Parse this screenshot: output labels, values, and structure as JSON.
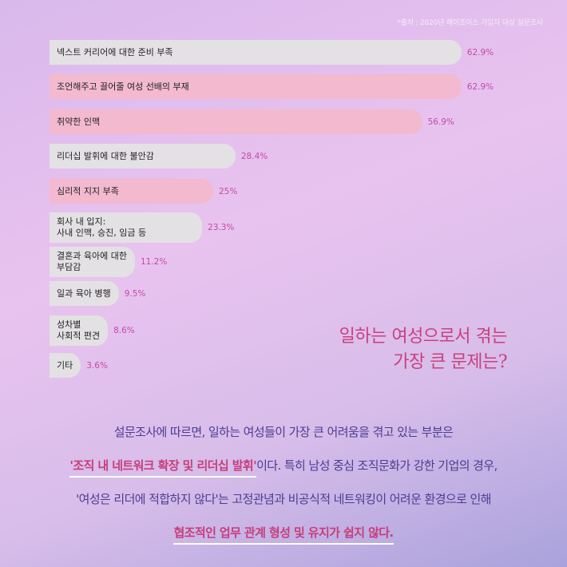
{
  "source_note": "*출처 : 2020년 헤이조이스 가입자 대상 설문조사",
  "chart_data": {
    "type": "bar",
    "orientation": "horizontal",
    "categories": [
      "넥스트 커리어에 대한 준비 부족",
      "조언해주고 끌어줄 여성 선배의 부재",
      "취약한 인맥",
      "리더십 발휘에 대한 불안감",
      "심리적 지지 부족",
      "회사 내 입지:\n사내 인맥, 승진, 임금 등",
      "결혼과 육아에 대한\n부담감",
      "일과 육아 병행",
      "성차별\n사회적 편견",
      "기타"
    ],
    "values": [
      62.9,
      62.9,
      56.9,
      28.4,
      25,
      23.3,
      11.2,
      9.5,
      8.6,
      3.6
    ],
    "value_labels": [
      "62.9%",
      "62.9%",
      "56.9%",
      "28.4%",
      "25%",
      "23.3%",
      "11.2%",
      "9.5%",
      "8.6%",
      "3.6%"
    ],
    "bar_colors": [
      "#e3e1e4",
      "#f2b9cf",
      "#f2b9cf",
      "#e3e1e4",
      "#f2b9cf",
      "#e3e1e4",
      "#e3e1e4",
      "#e3e1e4",
      "#e3e1e4",
      "#e3e1e4"
    ],
    "label_color": "#c24ba8"
  },
  "title": {
    "line1": "일하는 여성으로서 겪는",
    "line2": "가장 큰 문제는?"
  },
  "body": {
    "line1": "설문조사에 따르면, 일하는 여성들이 가장 큰 어려움을 겪고 있는 부분은",
    "line2_hl": "'조직 내 네트워크 확장 및 리더십 발휘'",
    "line2_rest": "이다. 특히 남성 중심 조직문화가 강한 기업의 경우,",
    "line3": "'여성은 리더에 적합하지 않다'는 고정관념과 비공식적 네트워킹이 어려운 환경으로 인해",
    "line4_hl": "협조적인 업무 관계 형성 및 유지가 쉽지 않다."
  }
}
